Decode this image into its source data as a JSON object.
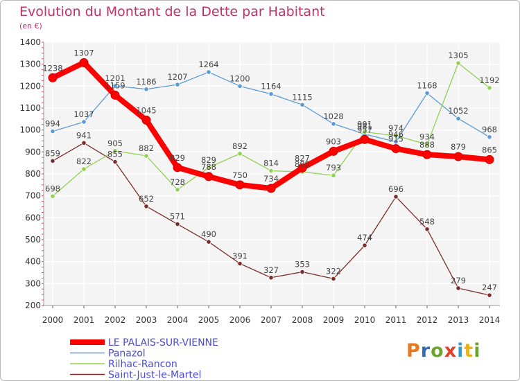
{
  "chart_data": {
    "type": "line",
    "title": "Evolution du Montant de la Dette par Habitant",
    "subtitle": "(en €)",
    "x": [
      "2000",
      "2001",
      "2002",
      "2003",
      "2004",
      "2005",
      "2006",
      "2007",
      "2008",
      "2009",
      "2010",
      "2011",
      "2012",
      "2013",
      "2014"
    ],
    "ylim": [
      200,
      1400
    ],
    "yticks": [
      200,
      300,
      400,
      500,
      600,
      700,
      800,
      900,
      1000,
      1100,
      1200,
      1300,
      1400
    ],
    "grid": true,
    "legend_position": "bottom-left",
    "series": [
      {
        "name": "LE PALAIS-SUR-VIENNE",
        "color": "#ff0000",
        "values": [
          1238,
          1307,
          1159,
          1045,
          829,
          788,
          750,
          734,
          827,
          903,
          957,
          915,
          888,
          879,
          865
        ]
      },
      {
        "name": "Panazol",
        "color": "#5b9bd5",
        "values": [
          994,
          1037,
          1201,
          1186,
          1207,
          1264,
          1200,
          1164,
          1115,
          1028,
          981,
          946,
          1168,
          1052,
          968
        ]
      },
      {
        "name": "Rilhac-Rancon",
        "color": "#92d050",
        "values": [
          698,
          822,
          905,
          882,
          728,
          829,
          892,
          814,
          809,
          793,
          991,
          974,
          934,
          1305,
          1192
        ]
      },
      {
        "name": "Saint-Just-le-Martel",
        "color": "#7b2c2c",
        "values": [
          859,
          941,
          855,
          652,
          571,
          490,
          391,
          327,
          353,
          322,
          474,
          696,
          548,
          279,
          247
        ]
      }
    ]
  },
  "logo": {
    "letters": [
      "P",
      "r",
      "o",
      "x",
      "i",
      "t",
      "i"
    ],
    "colors": [
      "#e87a1e",
      "#2f6fb5",
      "#6aa62b",
      "#e0402a",
      "#2f9fd0",
      "#e8b21e",
      "#6aa62b"
    ]
  }
}
